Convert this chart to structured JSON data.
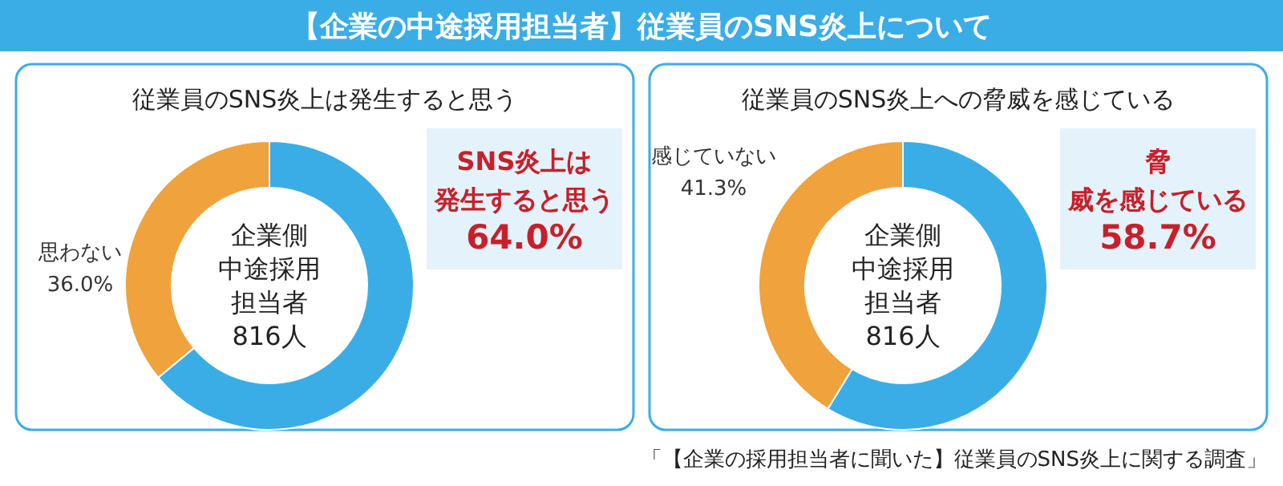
{
  "chart_data": [
    {
      "type": "donut",
      "title": "【企業の中途採用担当者】従業員のSNS炎上について",
      "subtitle": "従業員のSNS炎上は発生すると思う",
      "categories": [
        "SNS炎上は発生すると思う",
        "思わない"
      ],
      "values": [
        64.0,
        36.0
      ],
      "value_labels": [
        "64.0%",
        "36.0%"
      ],
      "colors": [
        "#3aade6",
        "#f0a23c"
      ],
      "annotations": [
        "企業側",
        "中途採用",
        "担当者",
        "816人"
      ]
    },
    {
      "type": "donut",
      "subtitle": "従業員のSNS炎上への脅威を感じている",
      "categories": [
        "脅威を感じている",
        "感じていない"
      ],
      "values": [
        58.7,
        41.3
      ],
      "value_labels": [
        "58.7%",
        "41.3%"
      ],
      "colors": [
        "#3aade6",
        "#f0a23c"
      ],
      "annotations": [
        "企業側",
        "中途採用",
        "担当者",
        "816人",
        "「【企業の採用担当者に聞いた】従業員のSNS炎上に関する調査」"
      ]
    }
  ]
}
